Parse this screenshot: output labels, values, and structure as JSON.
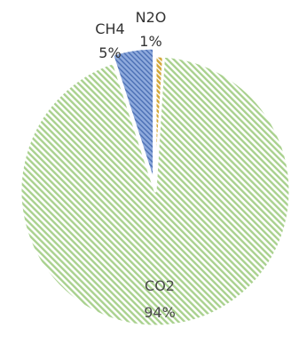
{
  "chart_data": {
    "type": "pie",
    "title": "",
    "categories": [
      "CO2",
      "CH4",
      "N2O"
    ],
    "values": [
      94,
      5,
      1
    ],
    "labels": [
      {
        "name": "CO2",
        "percent": "94%"
      },
      {
        "name": "CH4",
        "percent": "5%"
      },
      {
        "name": "N2O",
        "percent": "1%"
      }
    ],
    "colors": {
      "CO2": "#a9d18e",
      "CH4": "#8faadc",
      "N2O": "#d4a93a"
    },
    "pattern": "diagonal-stripes",
    "legend": "none"
  }
}
